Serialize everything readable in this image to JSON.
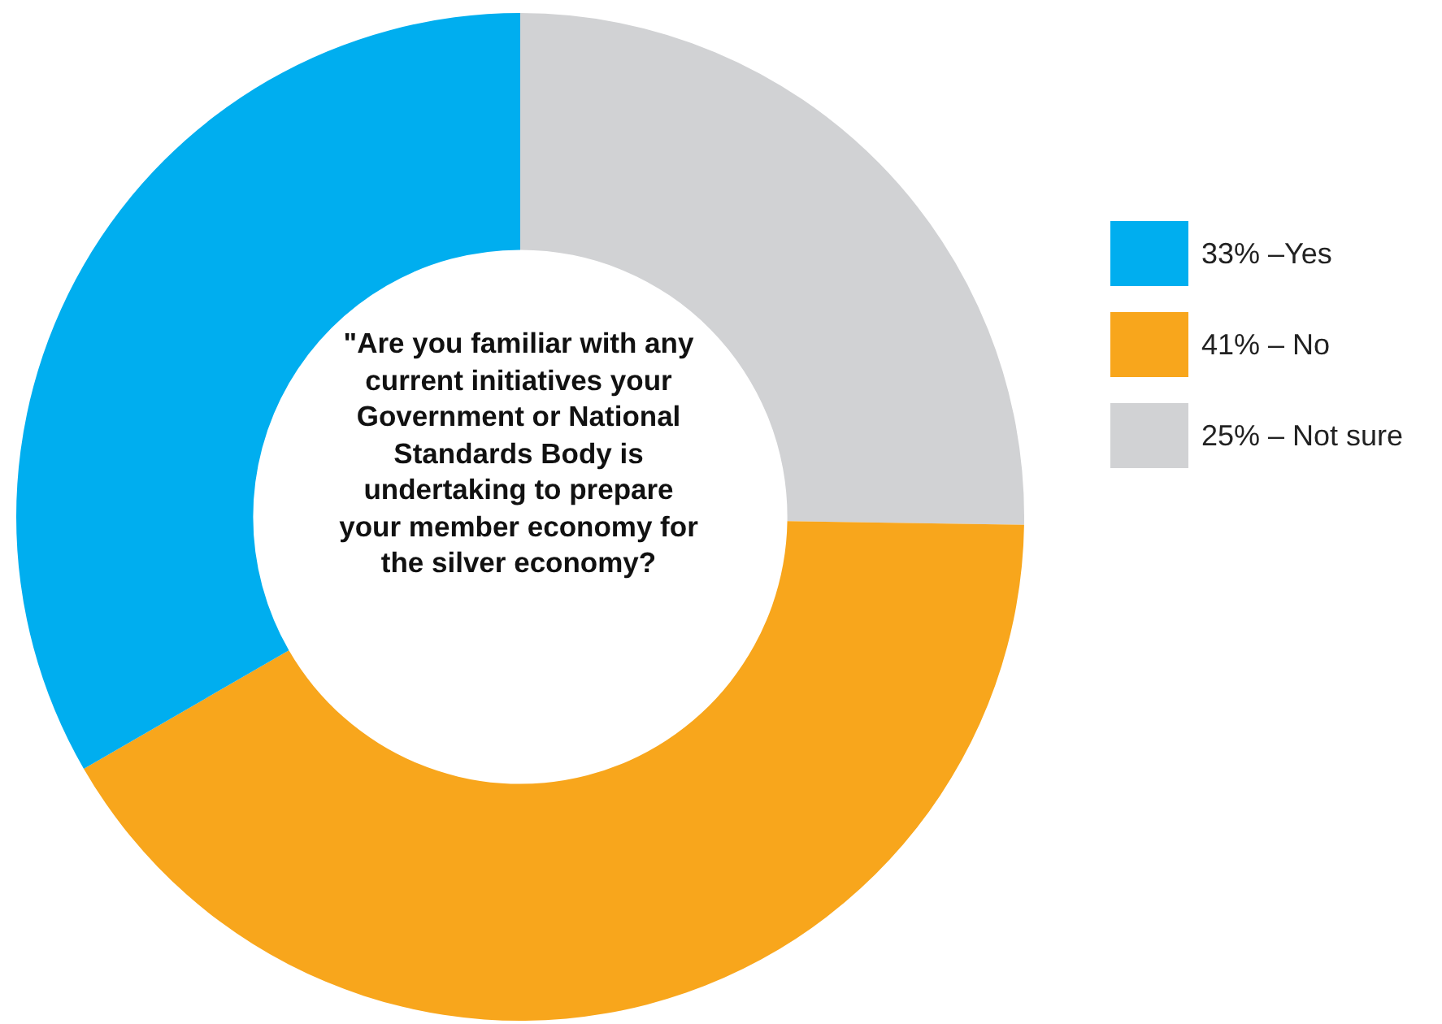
{
  "chart_data": {
    "type": "donut",
    "title": "\"Are you familiar with any current initiatives your Government or National Standards Body is undertaking to prepare your member economy for the silver economy?",
    "categories": [
      "33% –Yes",
      "41% – No",
      "25% – Not sure"
    ],
    "values": [
      33,
      41,
      25
    ],
    "colors": [
      "#00aeef",
      "#f8a61c",
      "#d1d2d4"
    ],
    "legend": "right"
  }
}
